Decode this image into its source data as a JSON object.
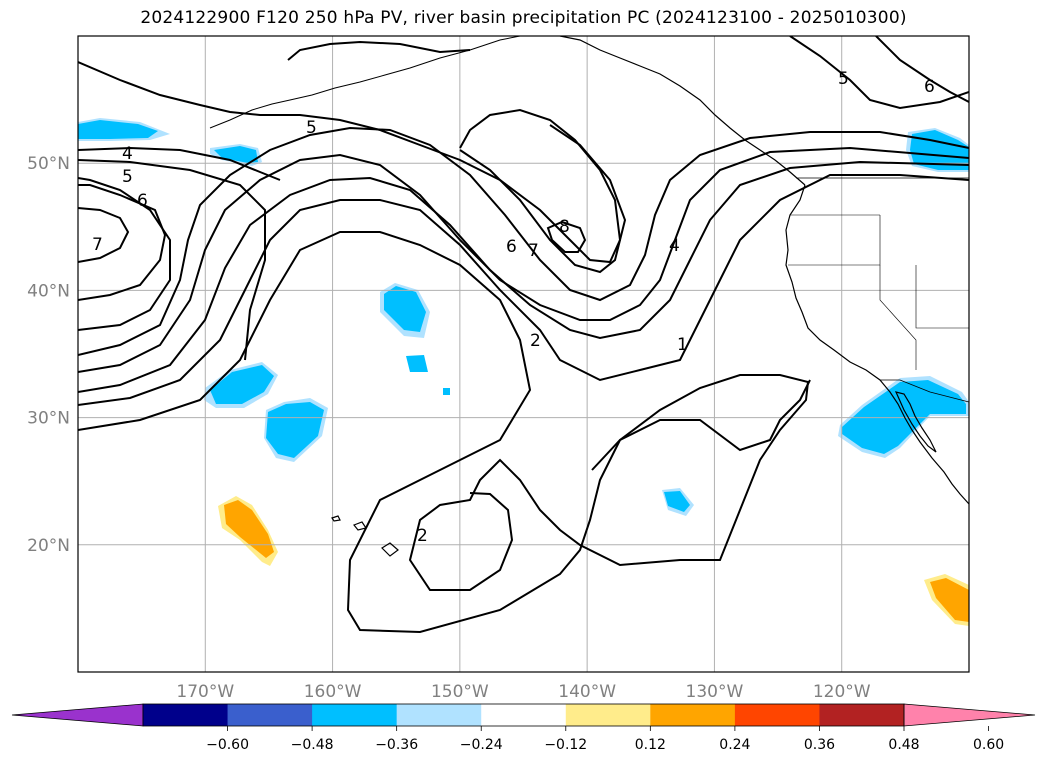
{
  "title": "2024122900 F120 250 hPa PV, river basin precipitation PC (2024123100 - 2025010300)",
  "map": {
    "lon_range": [
      -180,
      -110
    ],
    "lat_range": [
      10,
      60
    ],
    "lat_ticks": [
      {
        "value": 20,
        "label": "20°N"
      },
      {
        "value": 30,
        "label": "30°N"
      },
      {
        "value": 40,
        "label": "40°N"
      },
      {
        "value": 50,
        "label": "50°N"
      }
    ],
    "lon_ticks": [
      {
        "value": -170,
        "label": "170°W"
      },
      {
        "value": -160,
        "label": "160°W"
      },
      {
        "value": -150,
        "label": "150°W"
      },
      {
        "value": -140,
        "label": "140°W"
      },
      {
        "value": -130,
        "label": "130°W"
      },
      {
        "value": -120,
        "label": "120°W"
      }
    ],
    "grid": true,
    "gridline_color": "#b0b0b0"
  },
  "contour_labels": [
    "5",
    "4",
    "5",
    "6",
    "7",
    "5",
    "6",
    "8",
    "7",
    "6",
    "4",
    "2",
    "1",
    "2",
    "5",
    "6"
  ],
  "colorbar": {
    "extend": "both",
    "colors": [
      "#9a32cd",
      "#00008b",
      "#3a5fcd",
      "#00bfff",
      "#b0e2ff",
      "#ffffff",
      "#ffec8b",
      "#ffa500",
      "#ff4500",
      "#b22222",
      "#ff82ab"
    ],
    "tick_labels": [
      "−0.60",
      "−0.48",
      "−0.36",
      "−0.24",
      "−0.12",
      "0.12",
      "0.24",
      "0.36",
      "0.48",
      "0.60"
    ]
  }
}
